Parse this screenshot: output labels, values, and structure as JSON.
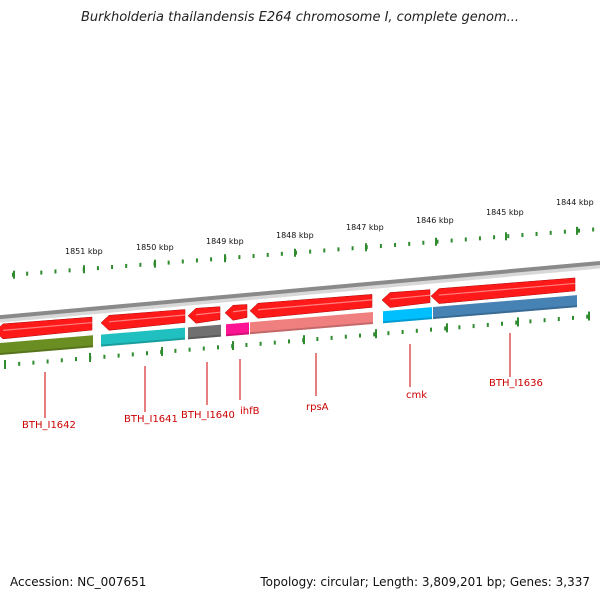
{
  "title": "Burkholderia thailandensis E264 chromosome I, complete genom...",
  "footer": {
    "accession": "Accession: NC_007651",
    "summary": "Topology: circular; Length: 3,809,201 bp; Genes: 3,337"
  },
  "colors": {
    "backbone": "#8a8a8a",
    "forward_strand": "#ff1a1a",
    "tick": "#2e8b2e",
    "label": "#cc0000"
  },
  "kbp_ticks": [
    {
      "label": "1851 kbp",
      "kbp": 1851
    },
    {
      "label": "1850 kbp",
      "kbp": 1850
    },
    {
      "label": "1849 kbp",
      "kbp": 1849
    },
    {
      "label": "1848 kbp",
      "kbp": 1848
    },
    {
      "label": "1847 kbp",
      "kbp": 1847
    },
    {
      "label": "1846 kbp",
      "kbp": 1846
    },
    {
      "label": "1845 kbp",
      "kbp": 1845
    },
    {
      "label": "1844 kbp",
      "kbp": 1844
    }
  ],
  "genes": [
    {
      "name": "BTH_I1642",
      "color": "#6b8e23"
    },
    {
      "name": "BTH_I1641",
      "color": "#20c0c0"
    },
    {
      "name": "BTH_I1640",
      "color": "#707070"
    },
    {
      "name": "ihfB",
      "color": "#ff1493"
    },
    {
      "name": "rpsA",
      "color": "#f08080"
    },
    {
      "name": "cmk",
      "color": "#00bfff"
    },
    {
      "name": "BTH_I1636",
      "color": "#4682b4"
    }
  ]
}
